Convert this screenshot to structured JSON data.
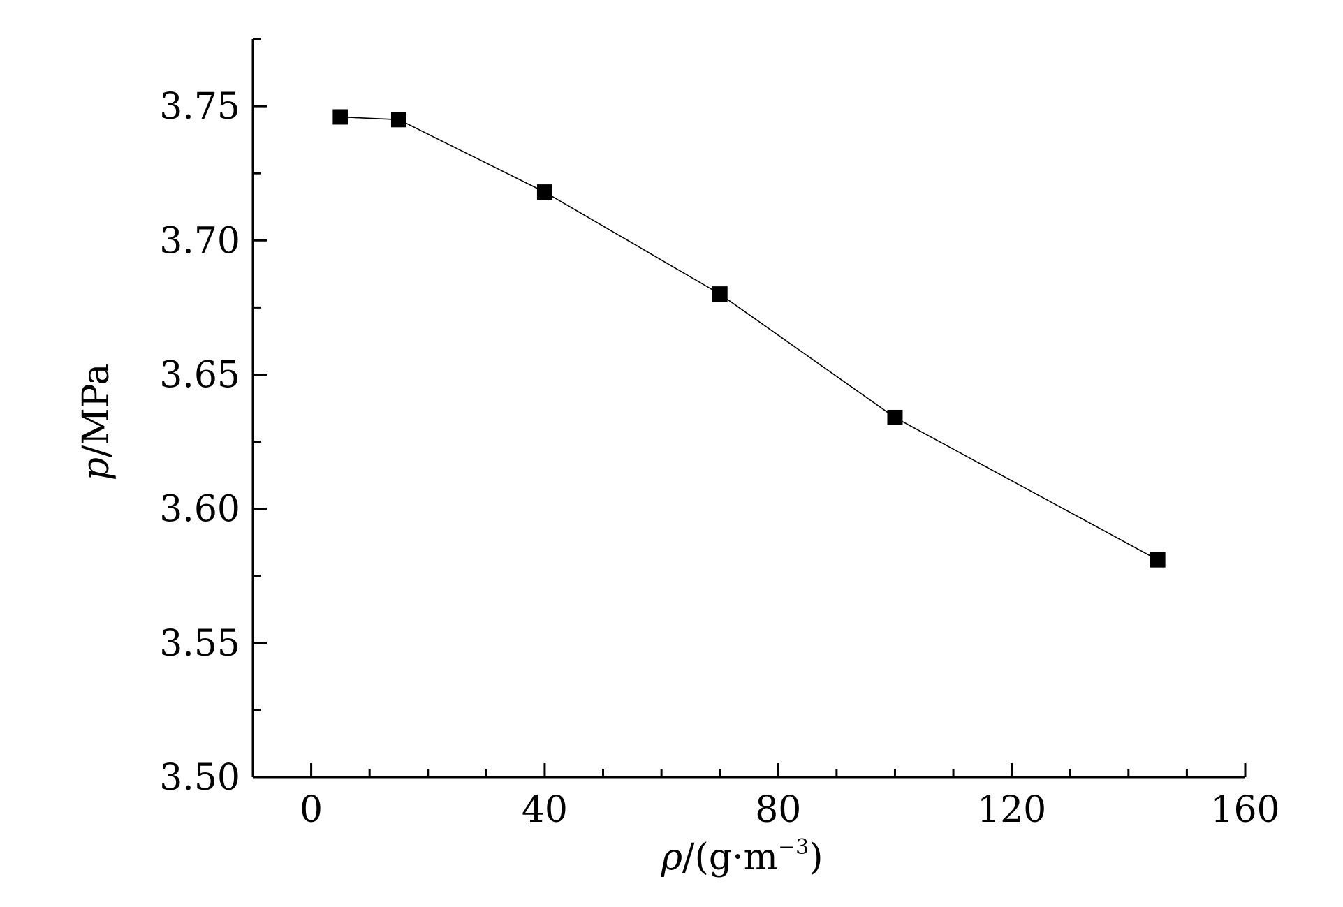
{
  "chart_data": {
    "type": "line",
    "title": "",
    "xlabel": {
      "symbol": "ρ",
      "unit_open": "/(g·m",
      "unit_exp": "−3",
      "unit_close": ")"
    },
    "ylabel": {
      "symbol": "p",
      "unit": "/MPa"
    },
    "xlim": [
      -10,
      160
    ],
    "ylim": [
      3.5,
      3.775
    ],
    "xticks": [
      0,
      40,
      80,
      120,
      160
    ],
    "xtick_labels": [
      "0",
      "40",
      "80",
      "120",
      "160"
    ],
    "x_minor_step": 10,
    "yticks": [
      3.5,
      3.55,
      3.6,
      3.65,
      3.7,
      3.75
    ],
    "ytick_labels": [
      "3.50",
      "3.55",
      "3.60",
      "3.65",
      "3.70",
      "3.75"
    ],
    "y_minor_step": 0.025,
    "grid": false,
    "legend": "none",
    "marker": "filled-square",
    "colors": {
      "series": "#000000",
      "axis": "#000000",
      "background": "#ffffff"
    },
    "series": [
      {
        "x": [
          5,
          15,
          40,
          70,
          100,
          145
        ],
        "y": [
          3.746,
          3.745,
          3.718,
          3.68,
          3.634,
          3.581
        ]
      }
    ]
  }
}
